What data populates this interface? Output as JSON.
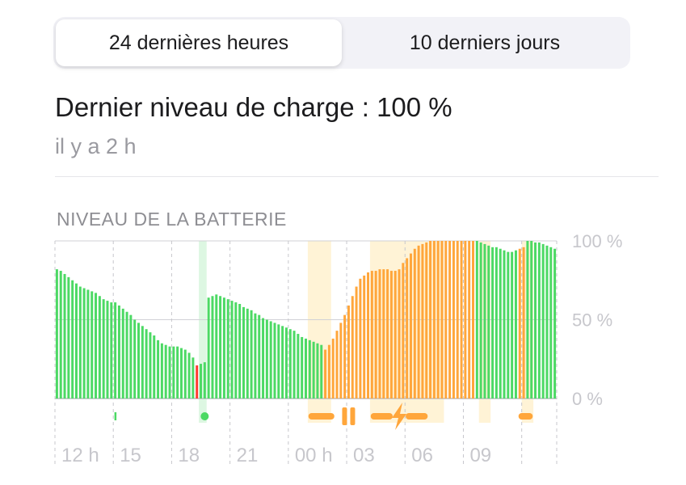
{
  "tabs": [
    {
      "label": "24 dernières heures",
      "active": true
    },
    {
      "label": "10 derniers jours",
      "active": false
    }
  ],
  "summary": {
    "headline": "Dernier niveau de charge : 100 %",
    "subtitle": "il y a 2 h"
  },
  "section": {
    "title": "NIVEAU DE LA BATTERIE"
  },
  "colors": {
    "green": "#4cd964",
    "orange": "#ffa63b",
    "red": "#ff3b30",
    "highlight_green": "#ddf7e2",
    "highlight_orange": "#fff3d6"
  },
  "chart_data": {
    "type": "bar",
    "ylim": [
      0,
      100
    ],
    "y_tick_labels": [
      "100 %",
      "50 %",
      "0 %"
    ],
    "y_tick_values": [
      100,
      50,
      0
    ],
    "x_tick_labels": [
      "12 h",
      "15",
      "18",
      "21",
      "00 h",
      "03",
      "06",
      "09"
    ],
    "grid": true,
    "values": [
      82,
      81,
      79,
      77,
      75,
      73,
      71,
      70,
      69,
      68,
      67,
      65,
      63,
      62,
      61,
      61,
      59,
      57,
      55,
      53,
      50,
      48,
      46,
      44,
      42,
      40,
      37,
      35,
      34,
      33,
      33,
      33,
      32,
      31,
      29,
      26,
      21,
      22,
      23,
      64,
      65,
      66,
      65,
      64,
      63,
      62,
      61,
      60,
      58,
      57,
      56,
      54,
      53,
      51,
      50,
      49,
      48,
      47,
      46,
      45,
      44,
      43,
      41,
      39,
      38,
      37,
      36,
      35,
      34,
      31,
      34,
      38,
      43,
      48,
      53,
      59,
      65,
      71,
      76,
      78,
      80,
      81,
      81,
      82,
      82,
      82,
      81,
      81,
      82,
      86,
      89,
      92,
      95,
      97,
      98,
      99,
      100,
      100,
      100,
      100,
      100,
      100,
      100,
      100,
      100,
      100,
      100,
      100,
      100,
      99,
      98,
      97,
      96,
      96,
      95,
      94,
      93,
      93,
      94,
      95,
      96,
      100,
      100,
      99,
      99,
      98,
      97,
      96,
      95
    ],
    "state": [
      "g",
      "g",
      "g",
      "g",
      "g",
      "g",
      "g",
      "g",
      "g",
      "g",
      "g",
      "g",
      "g",
      "g",
      "g",
      "g",
      "g",
      "g",
      "g",
      "g",
      "g",
      "g",
      "g",
      "g",
      "g",
      "g",
      "g",
      "g",
      "g",
      "g",
      "g",
      "g",
      "g",
      "g",
      "g",
      "g",
      "r",
      "g",
      "g",
      "g",
      "g",
      "g",
      "g",
      "g",
      "g",
      "g",
      "g",
      "g",
      "g",
      "g",
      "g",
      "g",
      "g",
      "g",
      "g",
      "g",
      "g",
      "g",
      "g",
      "g",
      "g",
      "g",
      "g",
      "g",
      "g",
      "g",
      "g",
      "g",
      "g",
      "o",
      "o",
      "o",
      "o",
      "o",
      "o",
      "o",
      "o",
      "o",
      "o",
      "o",
      "o",
      "o",
      "o",
      "o",
      "o",
      "o",
      "o",
      "o",
      "o",
      "o",
      "o",
      "o",
      "o",
      "o",
      "o",
      "o",
      "o",
      "o",
      "o",
      "o",
      "o",
      "o",
      "o",
      "o",
      "o",
      "o",
      "o",
      "o",
      "g",
      "g",
      "g",
      "g",
      "g",
      "g",
      "g",
      "g",
      "g",
      "g",
      "g",
      "o",
      "o",
      "g",
      "g",
      "g",
      "g",
      "g",
      "g",
      "g",
      "g"
    ],
    "shaded_regions": [
      {
        "start": 37,
        "end": 39,
        "color": "green"
      },
      {
        "start": 65,
        "end": 71,
        "color": "orange"
      },
      {
        "start": 81,
        "end": 100,
        "color": "orange"
      },
      {
        "start": 109,
        "end": 112,
        "color": "orange"
      },
      {
        "start": 120,
        "end": 123,
        "color": "orange"
      }
    ],
    "indicators": [
      {
        "type": "tick",
        "start": 15,
        "end": 15,
        "color": "green"
      },
      {
        "type": "dot",
        "start": 38,
        "end": 38,
        "color": "green"
      },
      {
        "type": "dash",
        "start": 66,
        "end": 71,
        "color": "orange"
      },
      {
        "type": "pause",
        "start": 75,
        "end": 75,
        "color": "orange"
      },
      {
        "type": "dash",
        "start": 82,
        "end": 86,
        "color": "orange"
      },
      {
        "type": "bolt",
        "start": 88,
        "end": 88,
        "color": "orange"
      },
      {
        "type": "dash",
        "start": 91,
        "end": 95,
        "color": "orange"
      },
      {
        "type": "dash",
        "start": 120,
        "end": 122,
        "color": "orange"
      }
    ]
  }
}
